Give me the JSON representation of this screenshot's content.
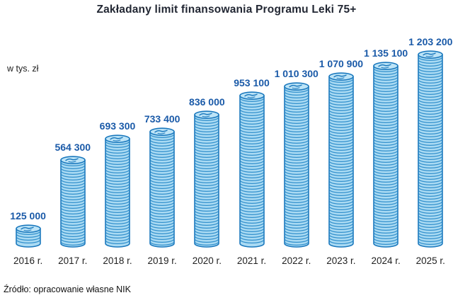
{
  "title": "Zakładany limit finansowania Programu Leki 75+",
  "y_axis_label": "w tys. zł",
  "source": "Źródło: opracowanie własne NIK",
  "colors": {
    "value_label": "#1a5aa8",
    "coin_fill": "#a9daf3",
    "coin_top_fill": "#bde4f7",
    "coin_stripe": "#3390cc",
    "coin_outline": "#1a78bd",
    "title_text": "#222733",
    "axis_text": "#1f1f1f"
  },
  "chart_data": {
    "type": "bar",
    "title": "Zakładany limit finansowania Programu Leki 75+",
    "xlabel": "",
    "ylabel": "w tys. zł",
    "unit": "tys. zł",
    "legend": null,
    "grid": false,
    "bar_style": "coin-stack",
    "categories": [
      "2016 r.",
      "2017 r.",
      "2018 r.",
      "2019 r.",
      "2020 r.",
      "2021 r.",
      "2022 r.",
      "2023 r.",
      "2024 r.",
      "2025 r."
    ],
    "values": [
      125000,
      564300,
      693300,
      733400,
      836000,
      953100,
      1010300,
      1070900,
      1135100,
      1203200
    ],
    "value_labels": [
      "125 000",
      "564 300",
      "693 300",
      "733 400",
      "836 000",
      "953 100",
      "1 010 300",
      "1 070 900",
      "1 135 100",
      "1 203 200"
    ],
    "ylim": [
      0,
      1250000
    ]
  }
}
